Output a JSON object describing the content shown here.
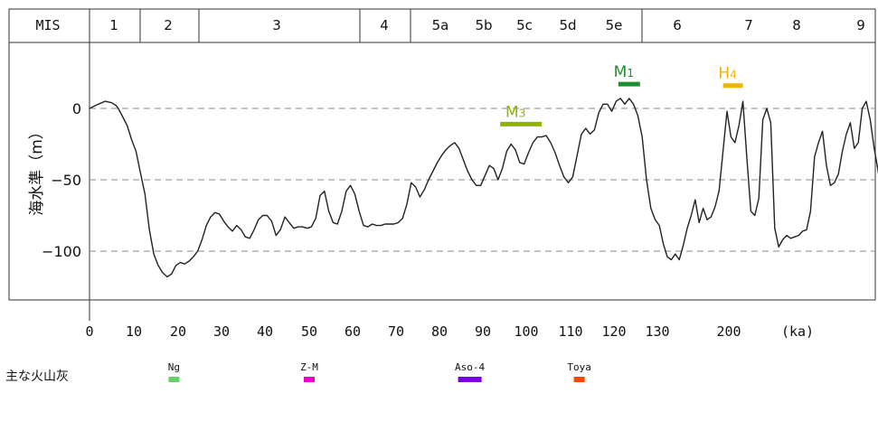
{
  "header": {
    "mis_label": "MIS",
    "stages": [
      "1",
      "2",
      "3",
      "4",
      "5a",
      "5b",
      "5c",
      "5d",
      "5e",
      "6",
      "7",
      "8",
      "9"
    ]
  },
  "colors": {
    "line": "#222222",
    "grid": "#888888",
    "m1": "#1e8f2e",
    "m3": "#8cb400",
    "h4": "#f0b400",
    "ng": "#66d066",
    "zm": "#ee00cc",
    "aso4": "#7a00e6",
    "toya": "#ff4400"
  },
  "chart_data": {
    "type": "line",
    "title": "",
    "ylabel": "海水準（m）",
    "xlabel": "(ka)",
    "yticks": [
      0,
      -50,
      -100
    ],
    "ytick_labels": [
      "0",
      "−50",
      "−100"
    ],
    "xtick_labels": [
      "0",
      "10",
      "20",
      "30",
      "40",
      "50",
      "60",
      "70",
      "80",
      "90",
      "100",
      "110",
      "120",
      "130",
      "200"
    ],
    "x_unit_label": "(ka)",
    "ylim": [
      -135,
      47
    ],
    "grid": "dashed at 0, -50, -100",
    "series": [
      {
        "values": [
          [
            0,
            0
          ],
          [
            2,
            3
          ],
          [
            3.5,
            5
          ],
          [
            5,
            4
          ],
          [
            6,
            2
          ],
          [
            6.5,
            0
          ],
          [
            7.5,
            -6
          ],
          [
            8.5,
            -12
          ],
          [
            9.5,
            -22
          ],
          [
            10.5,
            -30
          ],
          [
            11.5,
            -45
          ],
          [
            12.5,
            -60
          ],
          [
            13.5,
            -85
          ],
          [
            14.5,
            -102
          ],
          [
            15.5,
            -110
          ],
          [
            16.5,
            -115
          ],
          [
            17.5,
            -118
          ],
          [
            18.5,
            -116
          ],
          [
            19.5,
            -110
          ],
          [
            20.5,
            -108
          ],
          [
            21.5,
            -109
          ],
          [
            22.5,
            -107
          ],
          [
            23.5,
            -104
          ],
          [
            24.5,
            -100
          ],
          [
            25.5,
            -92
          ],
          [
            26.5,
            -82
          ],
          [
            27.5,
            -76
          ],
          [
            28.5,
            -73
          ],
          [
            29.5,
            -74
          ],
          [
            30.5,
            -79
          ],
          [
            31.5,
            -83
          ],
          [
            32.5,
            -86
          ],
          [
            33.5,
            -82
          ],
          [
            34.5,
            -85
          ],
          [
            35.5,
            -90
          ],
          [
            36.5,
            -91
          ],
          [
            37.5,
            -85
          ],
          [
            38.5,
            -78
          ],
          [
            39.5,
            -75
          ],
          [
            40.5,
            -75
          ],
          [
            41.5,
            -79
          ],
          [
            42.5,
            -89
          ],
          [
            43.5,
            -85
          ],
          [
            44.5,
            -76
          ],
          [
            45.5,
            -80
          ],
          [
            46.5,
            -84
          ],
          [
            47.5,
            -83
          ],
          [
            48.5,
            -83
          ],
          [
            49.5,
            -84
          ],
          [
            50.5,
            -83
          ],
          [
            51.5,
            -77
          ],
          [
            52.5,
            -61
          ],
          [
            53.5,
            -58
          ],
          [
            54.5,
            -72
          ],
          [
            55.5,
            -80
          ],
          [
            56.5,
            -81
          ],
          [
            57.5,
            -72
          ],
          [
            58.5,
            -58
          ],
          [
            59.5,
            -54
          ],
          [
            60.5,
            -60
          ],
          [
            61.5,
            -72
          ],
          [
            62.5,
            -82
          ],
          [
            63.5,
            -83
          ],
          [
            64.5,
            -81
          ],
          [
            65.5,
            -82
          ],
          [
            66.5,
            -82
          ],
          [
            67.5,
            -81
          ],
          [
            68.5,
            -81
          ],
          [
            69.5,
            -81
          ],
          [
            70.5,
            -80
          ],
          [
            71.5,
            -77
          ],
          [
            72.5,
            -67
          ],
          [
            73.5,
            -52
          ],
          [
            74.5,
            -55
          ],
          [
            75.5,
            -62
          ],
          [
            76.5,
            -57
          ],
          [
            77.5,
            -50
          ],
          [
            78.5,
            -44
          ],
          [
            79.5,
            -38
          ],
          [
            80.5,
            -33
          ],
          [
            81.5,
            -29
          ],
          [
            82.5,
            -26
          ],
          [
            83.5,
            -24
          ],
          [
            84.5,
            -28
          ],
          [
            85.5,
            -36
          ],
          [
            86.5,
            -44
          ],
          [
            87.5,
            -50
          ],
          [
            88.5,
            -54
          ],
          [
            89.5,
            -54
          ],
          [
            90.5,
            -47
          ],
          [
            91.5,
            -40
          ],
          [
            92.5,
            -42
          ],
          [
            93.5,
            -50
          ],
          [
            94.5,
            -42
          ],
          [
            95.5,
            -30
          ],
          [
            96.5,
            -25
          ],
          [
            97.5,
            -29
          ],
          [
            98.5,
            -38
          ],
          [
            99.5,
            -39
          ],
          [
            100.5,
            -31
          ],
          [
            101.5,
            -24
          ],
          [
            102.5,
            -20
          ],
          [
            103.5,
            -20
          ],
          [
            104.5,
            -19
          ],
          [
            105.5,
            -24
          ],
          [
            106.5,
            -31
          ],
          [
            107.5,
            -40
          ],
          [
            108.5,
            -48
          ],
          [
            109.5,
            -52
          ],
          [
            110.5,
            -48
          ],
          [
            111.5,
            -33
          ],
          [
            112.5,
            -18
          ],
          [
            113.5,
            -14
          ],
          [
            114.5,
            -18
          ],
          [
            115.5,
            -15
          ],
          [
            116.5,
            -3
          ],
          [
            117.5,
            3
          ],
          [
            118.5,
            3
          ],
          [
            119.5,
            -2
          ],
          [
            120.5,
            5
          ],
          [
            121.5,
            7
          ],
          [
            122.5,
            3
          ],
          [
            123.5,
            7
          ],
          [
            124.5,
            3
          ],
          [
            125.5,
            -5
          ],
          [
            126.5,
            -20
          ],
          [
            127.5,
            -50
          ],
          [
            128.5,
            -70
          ],
          [
            129.5,
            -78
          ],
          [
            130.5,
            -82
          ],
          [
            131.5,
            -95
          ],
          [
            132.5,
            -104
          ],
          [
            133.5,
            -106
          ],
          [
            134.5,
            -102
          ],
          [
            135.5,
            -106
          ],
          [
            136.5,
            -96
          ],
          [
            137.5,
            -84
          ],
          [
            138.5,
            -75
          ],
          [
            139.5,
            -64
          ],
          [
            140.5,
            -80
          ],
          [
            141.5,
            -70
          ],
          [
            142.5,
            -78
          ],
          [
            143.5,
            -76
          ],
          [
            144.5,
            -69
          ],
          [
            145.5,
            -58
          ],
          [
            146.5,
            -30
          ],
          [
            147.5,
            -2
          ],
          [
            148.5,
            -20
          ],
          [
            149.5,
            -24
          ],
          [
            150.5,
            -12
          ],
          [
            151.5,
            5
          ],
          [
            152.5,
            -35
          ],
          [
            153.5,
            -72
          ],
          [
            154.5,
            -75
          ],
          [
            155.5,
            -63
          ],
          [
            156.5,
            -8
          ],
          [
            157.5,
            0
          ],
          [
            158.5,
            -10
          ],
          [
            159.5,
            -84
          ],
          [
            160.5,
            -97
          ],
          [
            161.5,
            -92
          ],
          [
            162.5,
            -89
          ],
          [
            163.5,
            -91
          ],
          [
            164.5,
            -90
          ],
          [
            165.5,
            -89
          ],
          [
            166.5,
            -86
          ],
          [
            167.5,
            -85
          ],
          [
            168.5,
            -72
          ],
          [
            169.5,
            -34
          ],
          [
            170.5,
            -24
          ],
          [
            171.5,
            -16
          ],
          [
            172.5,
            -40
          ],
          [
            173.5,
            -54
          ],
          [
            174.5,
            -52
          ],
          [
            175.5,
            -46
          ],
          [
            176.5,
            -30
          ],
          [
            177.5,
            -18
          ],
          [
            178.5,
            -10
          ],
          [
            179.5,
            -28
          ],
          [
            180.5,
            -24
          ],
          [
            181.5,
            0
          ],
          [
            182.5,
            5
          ],
          [
            183.5,
            -8
          ],
          [
            184.5,
            -28
          ],
          [
            185.5,
            -44
          ],
          [
            186.5,
            -65
          ],
          [
            187.5,
            -78
          ]
        ]
      }
    ],
    "sea_level_markers": [
      {
        "label": "M",
        "sub": "1",
        "x_start": 121,
        "x_end": 126,
        "level": 17,
        "color": "#1e8f2e"
      },
      {
        "label": "M",
        "sub": "3",
        "x_start": 94,
        "x_end": 103.5,
        "level": -11,
        "color": "#8cb400"
      },
      {
        "label": "H",
        "sub": "4",
        "x_start": 146.5,
        "x_end": 151.5,
        "level": 16,
        "color": "#f0b400"
      }
    ]
  },
  "tephra": {
    "label": "主な火山灰",
    "items": [
      {
        "name": "Ng",
        "x": 16,
        "color": "#66d066"
      },
      {
        "name": "Z-M",
        "x": 50,
        "color": "#ee00cc"
      },
      {
        "name": "Aso-4",
        "x": 87,
        "color": "#7a00e6"
      },
      {
        "name": "Toya",
        "x": 112,
        "color": "#ff4400"
      }
    ]
  }
}
